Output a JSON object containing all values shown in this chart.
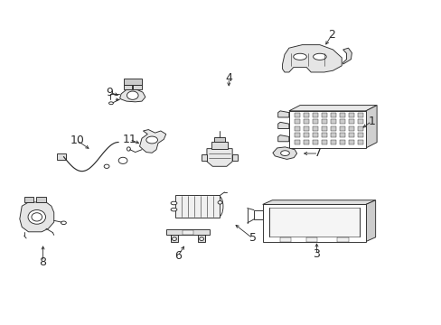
{
  "background_color": "#ffffff",
  "figsize": [
    4.89,
    3.6
  ],
  "dpi": 100,
  "line_color": "#2a2a2a",
  "lw": 0.65,
  "label_fontsize": 9,
  "leaders": [
    [
      1,
      0.845,
      0.625,
      0.818,
      0.6,
      true
    ],
    [
      2,
      0.752,
      0.892,
      0.74,
      0.858,
      true
    ],
    [
      3,
      0.72,
      0.218,
      0.72,
      0.262,
      true
    ],
    [
      4,
      0.518,
      0.758,
      0.518,
      0.72,
      true
    ],
    [
      5,
      0.575,
      0.268,
      0.535,
      0.308,
      true
    ],
    [
      6,
      0.405,
      0.212,
      0.422,
      0.248,
      true
    ],
    [
      7,
      0.722,
      0.53,
      0.688,
      0.53,
      true
    ],
    [
      8,
      0.098,
      0.195,
      0.098,
      0.25,
      true
    ],
    [
      9,
      0.248,
      0.718,
      0.272,
      0.705,
      true
    ],
    [
      10,
      0.175,
      0.568,
      0.208,
      0.538,
      true
    ],
    [
      11,
      0.29,
      0.572,
      0.318,
      0.558,
      true
    ]
  ]
}
